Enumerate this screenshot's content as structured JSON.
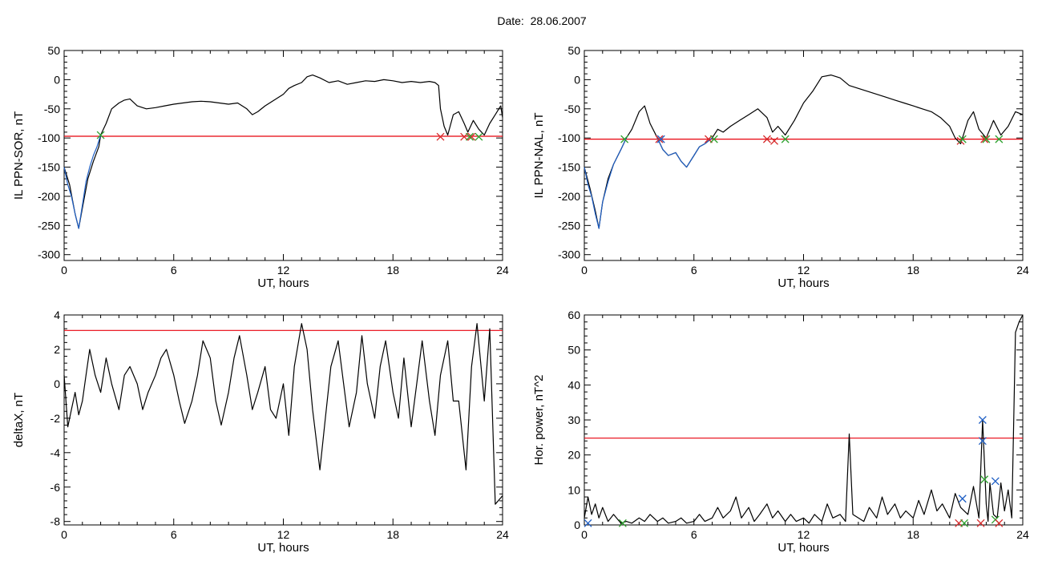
{
  "figure": {
    "title": "Date:  28.06.2007"
  },
  "chart_data": [
    {
      "type": "line",
      "id": "sor",
      "xlabel": "UT, hours",
      "ylabel": "IL PPN-SOR, nT",
      "xlim": [
        0,
        24
      ],
      "ylim": [
        -310,
        50
      ],
      "xticks": [
        0,
        6,
        12,
        18,
        24
      ],
      "yticks": [
        50,
        0,
        -50,
        -100,
        -150,
        -200,
        -250,
        -300
      ],
      "threshold": -97,
      "threshold_color": "#e8000b",
      "series": [
        {
          "color": "#000000",
          "x": [
            0,
            0.3,
            0.6,
            0.8,
            1.0,
            1.3,
            1.6,
            1.9,
            2.0,
            2.3,
            2.6,
            3.0,
            3.3,
            3.6,
            4.0,
            4.5,
            5.0,
            5.5,
            6.0,
            6.5,
            7.0,
            7.5,
            8.0,
            8.5,
            9.0,
            9.5,
            10.0,
            10.3,
            10.6,
            11.0,
            11.5,
            12.0,
            12.3,
            12.6,
            13.0,
            13.3,
            13.6,
            14.0,
            14.5,
            15.0,
            15.5,
            16.0,
            16.5,
            17.0,
            17.5,
            18.0,
            18.5,
            19.0,
            19.5,
            20.0,
            20.3,
            20.5,
            20.6,
            20.8,
            21.0,
            21.3,
            21.6,
            21.9,
            22.1,
            22.4,
            22.7,
            23.0,
            23.3,
            23.6,
            23.9,
            24.0
          ],
          "y": [
            -150,
            -180,
            -230,
            -255,
            -220,
            -170,
            -140,
            -115,
            -95,
            -75,
            -50,
            -40,
            -35,
            -33,
            -45,
            -50,
            -48,
            -45,
            -42,
            -40,
            -38,
            -37,
            -38,
            -40,
            -42,
            -40,
            -50,
            -60,
            -55,
            -45,
            -35,
            -25,
            -15,
            -10,
            -5,
            5,
            8,
            3,
            -5,
            -2,
            -8,
            -5,
            -2,
            -3,
            0,
            -2,
            -5,
            -3,
            -5,
            -3,
            -5,
            -10,
            -50,
            -80,
            -95,
            -60,
            -55,
            -75,
            -90,
            -70,
            -85,
            -95,
            -75,
            -60,
            -45,
            -65
          ]
        },
        {
          "color": "#1f5fc4",
          "x": [
            0,
            0.2,
            0.4,
            0.6,
            0.8,
            1.0,
            1.2,
            1.4,
            1.6,
            1.8,
            2.0
          ],
          "y": [
            -150,
            -180,
            -200,
            -230,
            -255,
            -215,
            -175,
            -150,
            -130,
            -115,
            -95
          ]
        }
      ],
      "markers": [
        {
          "x": 2.0,
          "y": -95,
          "color": "#2ca02c"
        },
        {
          "x": 20.6,
          "y": -98,
          "color": "#d62728"
        },
        {
          "x": 21.9,
          "y": -98,
          "color": "#d62728"
        },
        {
          "x": 22.3,
          "y": -98,
          "color": "#d62728"
        },
        {
          "x": 22.7,
          "y": -98,
          "color": "#2ca02c"
        },
        {
          "x": 22.2,
          "y": -98,
          "color": "#2ca02c"
        }
      ]
    },
    {
      "type": "line",
      "id": "nal",
      "xlabel": "UT, hours",
      "ylabel": "IL PPN-NAL, nT",
      "xlim": [
        0,
        24
      ],
      "ylim": [
        -310,
        50
      ],
      "xticks": [
        0,
        6,
        12,
        18,
        24
      ],
      "yticks": [
        50,
        0,
        -50,
        -100,
        -150,
        -200,
        -250,
        -300
      ],
      "threshold": -102,
      "threshold_color": "#e8000b",
      "series": [
        {
          "color": "#000000",
          "x": [
            0,
            0.3,
            0.6,
            0.8,
            1.0,
            1.3,
            1.6,
            2.0,
            2.3,
            2.6,
            3.0,
            3.3,
            3.6,
            4.0,
            4.3,
            4.6,
            5.0,
            5.3,
            5.6,
            6.0,
            6.3,
            6.6,
            7.0,
            7.3,
            7.6,
            8.0,
            8.5,
            9.0,
            9.5,
            10.0,
            10.3,
            10.6,
            11.0,
            11.5,
            12.0,
            12.5,
            13.0,
            13.5,
            14.0,
            14.5,
            15.0,
            15.5,
            16.0,
            16.5,
            17.0,
            17.5,
            18.0,
            18.5,
            19.0,
            19.5,
            20.0,
            20.3,
            20.6,
            21.0,
            21.3,
            21.6,
            22.0,
            22.4,
            22.8,
            23.2,
            23.6,
            24.0
          ],
          "y": [
            -150,
            -185,
            -225,
            -255,
            -210,
            -170,
            -145,
            -120,
            -100,
            -85,
            -55,
            -45,
            -75,
            -100,
            -120,
            -130,
            -125,
            -140,
            -150,
            -130,
            -115,
            -110,
            -100,
            -85,
            -90,
            -80,
            -70,
            -60,
            -50,
            -65,
            -90,
            -80,
            -95,
            -70,
            -40,
            -20,
            5,
            8,
            3,
            -10,
            -15,
            -20,
            -25,
            -30,
            -35,
            -40,
            -45,
            -50,
            -55,
            -65,
            -80,
            -100,
            -110,
            -70,
            -55,
            -85,
            -100,
            -70,
            -95,
            -80,
            -55,
            -60
          ]
        },
        {
          "color": "#1f5fc4",
          "x": [
            0,
            0.2,
            0.4,
            0.6,
            0.8,
            1.0,
            1.3,
            1.6,
            2.0,
            2.3
          ],
          "y": [
            -150,
            -180,
            -200,
            -230,
            -255,
            -210,
            -175,
            -145,
            -120,
            -100
          ]
        },
        {
          "color": "#1f5fc4",
          "x": [
            4.0,
            4.3,
            4.6,
            5.0,
            5.3,
            5.6,
            6.0,
            6.3,
            6.6,
            7.0
          ],
          "y": [
            -100,
            -120,
            -130,
            -125,
            -140,
            -150,
            -130,
            -115,
            -110,
            -100
          ]
        }
      ],
      "markers": [
        {
          "x": 2.2,
          "y": -102,
          "color": "#2ca02c"
        },
        {
          "x": 4.1,
          "y": -102,
          "color": "#d62728"
        },
        {
          "x": 4.2,
          "y": -102,
          "color": "#1f5fc4"
        },
        {
          "x": 6.8,
          "y": -102,
          "color": "#d62728"
        },
        {
          "x": 7.1,
          "y": -102,
          "color": "#2ca02c"
        },
        {
          "x": 10.0,
          "y": -102,
          "color": "#d62728"
        },
        {
          "x": 10.4,
          "y": -105,
          "color": "#d62728"
        },
        {
          "x": 11.0,
          "y": -102,
          "color": "#2ca02c"
        },
        {
          "x": 20.6,
          "y": -105,
          "color": "#d62728"
        },
        {
          "x": 20.7,
          "y": -102,
          "color": "#2ca02c"
        },
        {
          "x": 21.9,
          "y": -102,
          "color": "#d62728"
        },
        {
          "x": 22.0,
          "y": -102,
          "color": "#2ca02c"
        },
        {
          "x": 22.7,
          "y": -102,
          "color": "#2ca02c"
        }
      ]
    },
    {
      "type": "line",
      "id": "deltax",
      "xlabel": "UT, hours",
      "ylabel": "deltaX, nT",
      "xlim": [
        0,
        24
      ],
      "ylim": [
        -8.2,
        4
      ],
      "xticks": [
        0,
        6,
        12,
        18,
        24
      ],
      "yticks": [
        4,
        2,
        0,
        -2,
        -4,
        -6,
        -8
      ],
      "threshold": 3.1,
      "threshold_color": "#e8000b",
      "series": [
        {
          "color": "#000000",
          "x": [
            0,
            0.2,
            0.4,
            0.6,
            0.8,
            1.0,
            1.2,
            1.4,
            1.7,
            2.0,
            2.3,
            2.6,
            3.0,
            3.3,
            3.6,
            4.0,
            4.3,
            4.6,
            5.0,
            5.3,
            5.6,
            6.0,
            6.3,
            6.6,
            7.0,
            7.3,
            7.6,
            8.0,
            8.3,
            8.6,
            9.0,
            9.3,
            9.6,
            10.0,
            10.3,
            10.6,
            11.0,
            11.3,
            11.6,
            12.0,
            12.3,
            12.6,
            13.0,
            13.3,
            13.6,
            14.0,
            14.3,
            14.6,
            15.0,
            15.3,
            15.6,
            16.0,
            16.3,
            16.6,
            17.0,
            17.3,
            17.6,
            18.0,
            18.3,
            18.6,
            19.0,
            19.3,
            19.6,
            20.0,
            20.3,
            20.6,
            21.0,
            21.3,
            21.6,
            22.0,
            22.3,
            22.6,
            23.0,
            23.3,
            23.6,
            24.0
          ],
          "y": [
            0.5,
            -2.5,
            -1.5,
            -0.5,
            -1.8,
            -1.0,
            0.5,
            2.0,
            0.5,
            -0.5,
            1.5,
            0.0,
            -1.5,
            0.5,
            1.0,
            0.0,
            -1.5,
            -0.5,
            0.5,
            1.5,
            2.0,
            0.5,
            -1.0,
            -2.3,
            -1.0,
            0.5,
            2.5,
            1.5,
            -1.0,
            -2.4,
            -0.5,
            1.5,
            2.8,
            0.5,
            -1.5,
            -0.5,
            1.0,
            -1.5,
            -2.0,
            0.0,
            -3.0,
            1.0,
            3.5,
            2.0,
            -1.5,
            -5.0,
            -2.0,
            1.0,
            2.5,
            0.0,
            -2.5,
            -0.5,
            2.8,
            0.0,
            -2.0,
            1.0,
            2.5,
            -0.5,
            -2.0,
            1.5,
            -2.5,
            0.0,
            2.5,
            -1.0,
            -3.0,
            0.5,
            2.5,
            -1.0,
            -1.0,
            -5.0,
            1.0,
            3.5,
            -1.0,
            3.2,
            -7.0,
            -6.5
          ]
        }
      ],
      "markers": []
    },
    {
      "type": "line",
      "id": "power",
      "xlabel": "UT, hours",
      "ylabel": "Hor. power, nT^2",
      "xlim": [
        0,
        24
      ],
      "ylim": [
        0,
        60
      ],
      "xticks": [
        0,
        6,
        12,
        18,
        24
      ],
      "yticks": [
        60,
        50,
        40,
        30,
        20,
        10,
        0
      ],
      "threshold": 24.8,
      "threshold_color": "#e8000b",
      "series": [
        {
          "color": "#000000",
          "x": [
            0,
            0.2,
            0.4,
            0.6,
            0.8,
            1.0,
            1.3,
            1.6,
            2.0,
            2.3,
            2.6,
            3.0,
            3.3,
            3.6,
            4.0,
            4.3,
            4.6,
            5.0,
            5.3,
            5.6,
            6.0,
            6.3,
            6.6,
            7.0,
            7.3,
            7.6,
            8.0,
            8.3,
            8.6,
            9.0,
            9.3,
            9.6,
            10.0,
            10.3,
            10.6,
            11.0,
            11.3,
            11.6,
            12.0,
            12.3,
            12.6,
            13.0,
            13.3,
            13.6,
            14.0,
            14.3,
            14.5,
            14.7,
            15.0,
            15.3,
            15.6,
            16.0,
            16.3,
            16.6,
            17.0,
            17.3,
            17.6,
            18.0,
            18.3,
            18.6,
            19.0,
            19.3,
            19.6,
            20.0,
            20.3,
            20.6,
            21.0,
            21.3,
            21.6,
            21.8,
            22.0,
            22.1,
            22.2,
            22.4,
            22.6,
            22.8,
            23.0,
            23.2,
            23.4,
            23.6,
            23.8,
            24.0
          ],
          "y": [
            2,
            8,
            3,
            6,
            2,
            5,
            1,
            3,
            0.5,
            1,
            0.5,
            2,
            1,
            3,
            1,
            2,
            0.5,
            1,
            2,
            0.5,
            1,
            3,
            1,
            2,
            5,
            2,
            4,
            8,
            2,
            5,
            1,
            3,
            6,
            2,
            4,
            1,
            3,
            1,
            2,
            0.5,
            3,
            1,
            6,
            2,
            3,
            1,
            26,
            3,
            2,
            1,
            5,
            2,
            8,
            3,
            6,
            2,
            4,
            2,
            7,
            3,
            10,
            4,
            6,
            2,
            9,
            5,
            3,
            11,
            2,
            30,
            6,
            1,
            12,
            3,
            2,
            12,
            4,
            10,
            2,
            55,
            58,
            60
          ]
        }
      ],
      "markers": [
        {
          "x": 20.7,
          "y": 7.5,
          "color": "#1f5fc4"
        },
        {
          "x": 20.5,
          "y": 0.5,
          "color": "#d62728"
        },
        {
          "x": 20.8,
          "y": 0.5,
          "color": "#2ca02c"
        },
        {
          "x": 21.8,
          "y": 30,
          "color": "#1f5fc4"
        },
        {
          "x": 21.8,
          "y": 24,
          "color": "#1f5fc4"
        },
        {
          "x": 21.9,
          "y": 13,
          "color": "#2ca02c"
        },
        {
          "x": 21.7,
          "y": 0.5,
          "color": "#d62728"
        },
        {
          "x": 22.5,
          "y": 12.5,
          "color": "#1f5fc4"
        },
        {
          "x": 22.5,
          "y": 1.5,
          "color": "#2ca02c"
        },
        {
          "x": 22.7,
          "y": 0.5,
          "color": "#d62728"
        },
        {
          "x": 2.1,
          "y": 0.5,
          "color": "#2ca02c"
        },
        {
          "x": 0.2,
          "y": 0.5,
          "color": "#1f5fc4"
        }
      ]
    }
  ]
}
